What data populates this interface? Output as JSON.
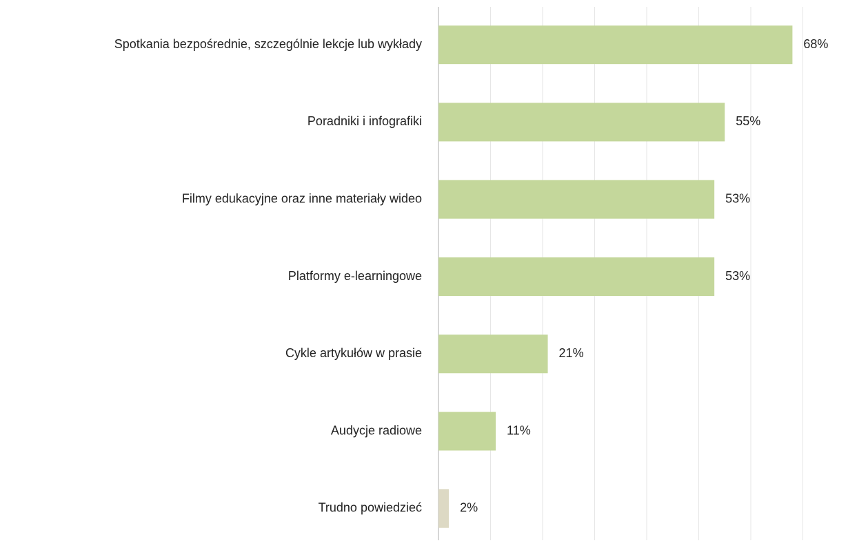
{
  "chart_data": {
    "type": "bar",
    "orientation": "horizontal",
    "categories": [
      "Spotkania bezpośrednie, szczególnie lekcje lub wykłady",
      "Poradniki i infografiki",
      "Filmy edukacyjne oraz inne materiały wideo",
      "Platformy e-learningowe",
      "Cykle artykułów w prasie",
      "Audycje radiowe",
      "Trudno powiedzieć"
    ],
    "values": [
      68,
      55,
      53,
      53,
      21,
      11,
      2
    ],
    "value_labels": [
      "68%",
      "55%",
      "53%",
      "53%",
      "21%",
      "11%",
      "2%"
    ],
    "colors": [
      "#c4d79b",
      "#c4d79b",
      "#c4d79b",
      "#c4d79b",
      "#c4d79b",
      "#c4d79b",
      "#ddd9c4"
    ],
    "xlim": [
      0,
      70
    ],
    "xticks": [
      0,
      10,
      20,
      30,
      40,
      50,
      60,
      70
    ],
    "grid": true
  }
}
